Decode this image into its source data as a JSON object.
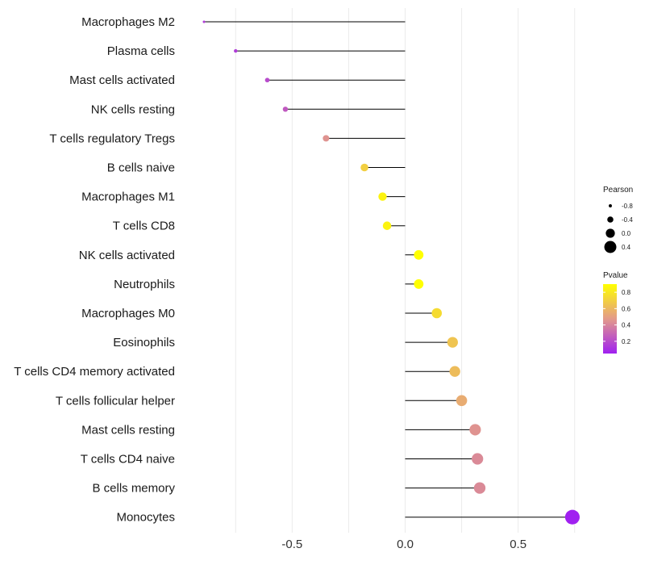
{
  "chart_data": {
    "type": "lollipop",
    "categories": [
      "Macrophages M2",
      "Plasma cells",
      "Mast cells activated",
      "NK cells resting",
      "T cells regulatory  Tregs",
      "B cells naive",
      "Macrophages M1",
      "T cells CD8",
      "NK cells activated",
      "Neutrophils",
      "Macrophages M0",
      "Eosinophils",
      "T cells CD4 memory activated",
      "T cells follicular helper",
      "Mast cells resting",
      "T cells CD4 naive",
      "B cells memory",
      "Monocytes"
    ],
    "values": [
      -0.89,
      -0.75,
      -0.61,
      -0.53,
      -0.35,
      -0.18,
      -0.1,
      -0.08,
      0.06,
      0.06,
      0.14,
      0.21,
      0.22,
      0.25,
      0.31,
      0.32,
      0.33,
      0.74
    ],
    "pvalues": [
      0.15,
      0.15,
      0.2,
      0.25,
      0.45,
      0.7,
      0.85,
      0.85,
      0.9,
      0.9,
      0.75,
      0.65,
      0.62,
      0.55,
      0.45,
      0.42,
      0.42,
      0.05
    ],
    "x_ticks": [
      -0.5,
      0.0,
      0.5
    ],
    "x_tick_labels": [
      "-0.5",
      "0.0",
      "0.5"
    ],
    "xlim": [
      -0.99,
      0.99
    ],
    "grid": true,
    "legend": {
      "size_title": "Pearson",
      "size_breaks": [
        -0.8,
        -0.4,
        0.0,
        0.4
      ],
      "size_labels": [
        "-0.8",
        "-0.4",
        "0.0",
        "0.4"
      ],
      "color_title": "Pvalue",
      "color_breaks": [
        0.2,
        0.4,
        0.6,
        0.8
      ],
      "color_labels": [
        "0.2",
        "0.4",
        "0.6",
        "0.8"
      ],
      "placement": "right"
    },
    "colors": {
      "low": "#a020f0",
      "mid": "#e39a8a",
      "high": "#ffff00",
      "segment": "#000000",
      "grid": "#ebebeb"
    }
  }
}
